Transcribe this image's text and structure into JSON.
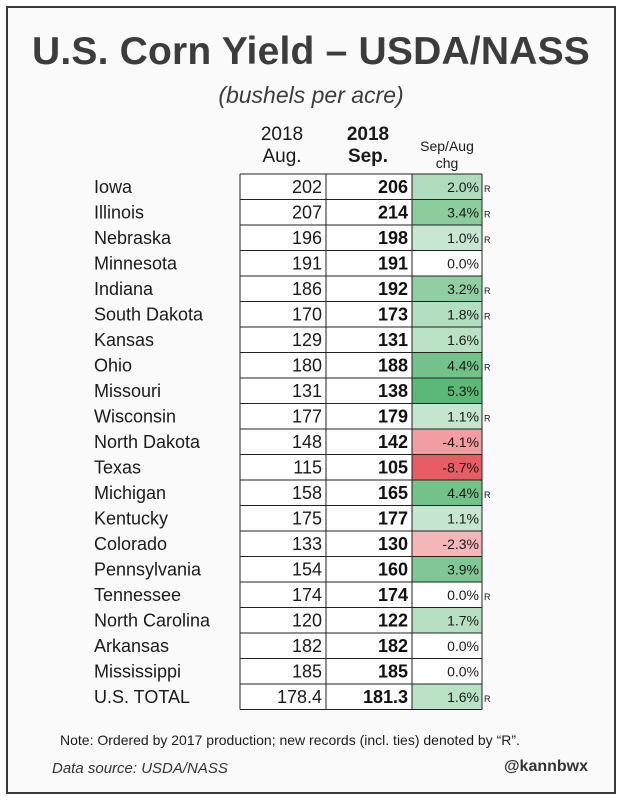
{
  "header": {
    "title": "U.S. Corn Yield – USDA/NASS",
    "subtitle": "(bushels per acre)"
  },
  "columns": {
    "aug_line1": "2018",
    "aug_line2": "Aug.",
    "sep_line1": "2018",
    "sep_line2": "Sep.",
    "chg_line1": "Sep/Aug",
    "chg_line2": "chg"
  },
  "record_mark": "R",
  "colors": {
    "positive_scale": "#5cb876",
    "negative_scale": "#e85c63",
    "neutral": "#ffffff",
    "border": "#222222"
  },
  "chart_data": {
    "type": "table",
    "title": "U.S. Corn Yield – USDA/NASS",
    "subtitle": "(bushels per acre)",
    "columns": [
      "2018 Aug.",
      "2018 Sep.",
      "Sep/Aug chg"
    ],
    "rows": [
      {
        "state": "Iowa",
        "aug": "202",
        "sep": "206",
        "chg": "2.0%",
        "pct": 2.0,
        "record": true
      },
      {
        "state": "Illinois",
        "aug": "207",
        "sep": "214",
        "chg": "3.4%",
        "pct": 3.4,
        "record": true
      },
      {
        "state": "Nebraska",
        "aug": "196",
        "sep": "198",
        "chg": "1.0%",
        "pct": 1.0,
        "record": true
      },
      {
        "state": "Minnesota",
        "aug": "191",
        "sep": "191",
        "chg": "0.0%",
        "pct": 0.0,
        "record": false
      },
      {
        "state": "Indiana",
        "aug": "186",
        "sep": "192",
        "chg": "3.2%",
        "pct": 3.2,
        "record": true
      },
      {
        "state": "South Dakota",
        "aug": "170",
        "sep": "173",
        "chg": "1.8%",
        "pct": 1.8,
        "record": true
      },
      {
        "state": "Kansas",
        "aug": "129",
        "sep": "131",
        "chg": "1.6%",
        "pct": 1.6,
        "record": false
      },
      {
        "state": "Ohio",
        "aug": "180",
        "sep": "188",
        "chg": "4.4%",
        "pct": 4.4,
        "record": true
      },
      {
        "state": "Missouri",
        "aug": "131",
        "sep": "138",
        "chg": "5.3%",
        "pct": 5.3,
        "record": false
      },
      {
        "state": "Wisconsin",
        "aug": "177",
        "sep": "179",
        "chg": "1.1%",
        "pct": 1.1,
        "record": true
      },
      {
        "state": "North Dakota",
        "aug": "148",
        "sep": "142",
        "chg": "-4.1%",
        "pct": -4.1,
        "record": false
      },
      {
        "state": "Texas",
        "aug": "115",
        "sep": "105",
        "chg": "-8.7%",
        "pct": -8.7,
        "record": false
      },
      {
        "state": "Michigan",
        "aug": "158",
        "sep": "165",
        "chg": "4.4%",
        "pct": 4.4,
        "record": true
      },
      {
        "state": "Kentucky",
        "aug": "175",
        "sep": "177",
        "chg": "1.1%",
        "pct": 1.1,
        "record": false
      },
      {
        "state": "Colorado",
        "aug": "133",
        "sep": "130",
        "chg": "-2.3%",
        "pct": -2.3,
        "record": false
      },
      {
        "state": "Pennsylvania",
        "aug": "154",
        "sep": "160",
        "chg": "3.9%",
        "pct": 3.9,
        "record": false
      },
      {
        "state": "Tennessee",
        "aug": "174",
        "sep": "174",
        "chg": "0.0%",
        "pct": 0.0,
        "record": true
      },
      {
        "state": "North Carolina",
        "aug": "120",
        "sep": "122",
        "chg": "1.7%",
        "pct": 1.7,
        "record": false
      },
      {
        "state": "Arkansas",
        "aug": "182",
        "sep": "182",
        "chg": "0.0%",
        "pct": 0.0,
        "record": false
      },
      {
        "state": "Mississippi",
        "aug": "185",
        "sep": "185",
        "chg": "0.0%",
        "pct": 0.0,
        "record": false
      },
      {
        "state": "U.S. TOTAL",
        "aug": "178.4",
        "sep": "181.3",
        "chg": "1.6%",
        "pct": 1.6,
        "record": true
      }
    ]
  },
  "footer": {
    "note": "Note: Ordered by 2017 production; new records (incl. ties) denoted by “R”.",
    "source": "Data source: USDA/NASS",
    "handle": "@kannbwx"
  }
}
